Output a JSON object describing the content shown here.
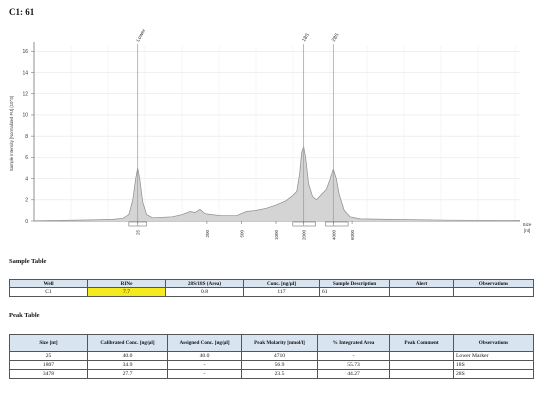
{
  "page": {
    "title": "C1: 61"
  },
  "chart_data": {
    "type": "line",
    "title": "",
    "ylabel": "Sample Intensity [Normalized FU] (10^3)",
    "xlabel": "Size [nt]",
    "y_ticks": [
      0,
      2,
      4,
      6,
      8,
      10,
      12,
      14,
      16
    ],
    "ylim": [
      0,
      16.5
    ],
    "x_tick_labels": [
      "25",
      "200",
      "500",
      "1000",
      "2000",
      "4000",
      "6000"
    ],
    "peaks": [
      {
        "label": "Lower",
        "size_nt": 25,
        "height": 5.0
      },
      {
        "label": "18S",
        "size_nt": 1807,
        "height": 7.0
      },
      {
        "label": "28S",
        "size_nt": 3478,
        "height": 4.9
      }
    ],
    "trace": [
      [
        0,
        0.02
      ],
      [
        30,
        0.06
      ],
      [
        60,
        0.1
      ],
      [
        80,
        0.15
      ],
      [
        90,
        0.25
      ],
      [
        96,
        0.6
      ],
      [
        100,
        2.0
      ],
      [
        103,
        4.0
      ],
      [
        105,
        5.0
      ],
      [
        107,
        4.0
      ],
      [
        110,
        1.8
      ],
      [
        114,
        0.6
      ],
      [
        120,
        0.3
      ],
      [
        140,
        0.4
      ],
      [
        150,
        0.6
      ],
      [
        158,
        0.9
      ],
      [
        163,
        0.8
      ],
      [
        168,
        1.1
      ],
      [
        173,
        0.7
      ],
      [
        180,
        0.6
      ],
      [
        190,
        0.5
      ],
      [
        205,
        0.5
      ],
      [
        215,
        0.9
      ],
      [
        225,
        1.0
      ],
      [
        235,
        1.2
      ],
      [
        245,
        1.5
      ],
      [
        255,
        1.9
      ],
      [
        262,
        2.4
      ],
      [
        266,
        2.8
      ],
      [
        269,
        4.5
      ],
      [
        271,
        6.5
      ],
      [
        273,
        7.0
      ],
      [
        275,
        6.0
      ],
      [
        278,
        3.5
      ],
      [
        282,
        2.3
      ],
      [
        286,
        2.0
      ],
      [
        290,
        2.4
      ],
      [
        296,
        3.0
      ],
      [
        300,
        4.0
      ],
      [
        303,
        4.9
      ],
      [
        306,
        4.0
      ],
      [
        309,
        2.5
      ],
      [
        314,
        1.0
      ],
      [
        320,
        0.4
      ],
      [
        330,
        0.2
      ],
      [
        360,
        0.15
      ],
      [
        420,
        0.08
      ],
      [
        492,
        0.05
      ]
    ],
    "x_tick_positions_index": [
      105,
      175,
      210,
      245,
      273,
      303,
      322
    ],
    "grid": true
  },
  "sample_table": {
    "title": "Sample Table",
    "headers": [
      "Well",
      "RINe",
      "28S/18S (Area)",
      "Conc. [ng/µl]",
      "Sample Description",
      "Alert",
      "Observations"
    ],
    "row": [
      "C1",
      "7.7",
      "0.8",
      "117",
      "61",
      "",
      ""
    ]
  },
  "peak_table": {
    "title": "Peak Table",
    "headers": [
      "Size [nt]",
      "Calibrated Conc. [ng/µl]",
      "Assigned Conc. [ng/µl]",
      "Peak Molarity [nmol/l]",
      "% Integrated Area",
      "Peak Comment",
      "Observations"
    ],
    "rows": [
      [
        "25",
        "40.0",
        "40.0",
        "4710",
        "-",
        "",
        "Lower Marker"
      ],
      [
        "1807",
        "34.9",
        "-",
        "56.9",
        "55.73",
        "",
        "18S"
      ],
      [
        "3478",
        "27.7",
        "-",
        "23.5",
        "44.27",
        "",
        "28S"
      ]
    ]
  }
}
